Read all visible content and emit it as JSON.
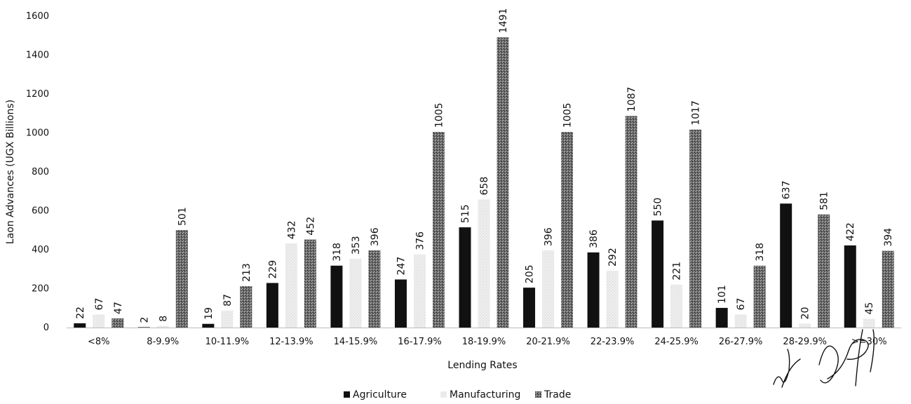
{
  "chart_data": {
    "type": "bar",
    "title": "",
    "xlabel": "Lending Rates",
    "ylabel": "Laon Advances (UGX Billions)",
    "ylim": [
      0,
      1600
    ],
    "yticks": [
      0,
      200,
      400,
      600,
      800,
      1000,
      1200,
      1400,
      1600
    ],
    "grid": false,
    "legend_position": "bottom",
    "categories": [
      "<8%",
      "8-9.9%",
      "10-11.9%",
      "12-13.9%",
      "14-15.9%",
      "16-17.9%",
      "18-19.9%",
      "20-21.9%",
      "22-23.9%",
      "24-25.9%",
      "26-27.9%",
      "28-29.9%",
      ">=30%"
    ],
    "series": [
      {
        "name": "Agriculture",
        "color": "#111111",
        "values": [
          22,
          2,
          19,
          229,
          318,
          247,
          515,
          205,
          386,
          550,
          101,
          637,
          422
        ]
      },
      {
        "name": "Manufacturing",
        "color": "#e6e6e6",
        "values": [
          67,
          8,
          87,
          432,
          353,
          376,
          658,
          396,
          292,
          221,
          67,
          20,
          45
        ]
      },
      {
        "name": "Trade",
        "color": "#555555",
        "values": [
          47,
          501,
          213,
          452,
          396,
          1005,
          1491,
          1005,
          1087,
          1017,
          318,
          581,
          394
        ]
      }
    ]
  }
}
